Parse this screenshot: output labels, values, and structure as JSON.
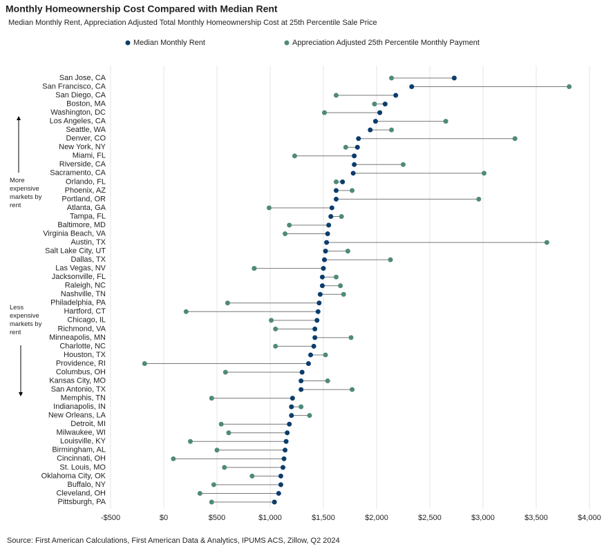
{
  "chart_data": {
    "type": "dumbbell",
    "title": "Monthly Homeownership Cost Compared with Median Rent",
    "subtitle": "Median Monthly Rent, Appreciation Adjusted Total Monthly Homeownership Cost at 25th Percentile Sale Price",
    "source": "Source: First American Calculations, First American Data & Analytics, IPUMS ACS, Zillow, Q2 2024",
    "annotations": [
      "More expensive markets by rent",
      "Less expensive markets by rent"
    ],
    "categories": [
      "San Jose, CA",
      "San Francisco, CA",
      "San Diego, CA",
      "Boston, MA",
      "Washington, DC",
      "Los Angeles, CA",
      "Seattle, WA",
      "Denver, CO",
      "New York, NY",
      "Miami, FL",
      "Riverside, CA",
      "Sacramento, CA",
      "Orlando, FL",
      "Phoenix, AZ",
      "Portland, OR",
      "Atlanta, GA",
      "Tampa, FL",
      "Baltimore, MD",
      "Virginia Beach, VA",
      "Austin, TX",
      "Salt Lake City, UT",
      "Dallas, TX",
      "Las Vegas, NV",
      "Jacksonville, FL",
      "Raleigh, NC",
      "Nashville, TN",
      "Philadelphia, PA",
      "Hartford, CT",
      "Chicago, IL",
      "Richmond, VA",
      "Minneapolis, MN",
      "Charlotte, NC",
      "Houston, TX",
      "Providence, RI",
      "Columbus, OH",
      "Kansas City, MO",
      "San Antonio, TX",
      "Memphis, TN",
      "Indianapolis, IN",
      "New Orleans, LA",
      "Detroit, MI",
      "Milwaukee, WI",
      "Louisville, KY",
      "Birmingham, AL",
      "Cincinnati, OH",
      "St. Louis, MO",
      "Oklahoma City, OK",
      "Buffalo, NY",
      "Cleveland, OH",
      "Pittsburgh, PA"
    ],
    "series": [
      {
        "name": "Median Monthly Rent",
        "color": "#0b3d6b",
        "values": [
          2730,
          2330,
          2180,
          2080,
          2030,
          1990,
          1940,
          1830,
          1820,
          1790,
          1790,
          1780,
          1680,
          1620,
          1620,
          1580,
          1570,
          1550,
          1540,
          1530,
          1520,
          1510,
          1500,
          1490,
          1490,
          1470,
          1460,
          1450,
          1440,
          1420,
          1420,
          1410,
          1380,
          1360,
          1300,
          1290,
          1290,
          1210,
          1200,
          1200,
          1180,
          1160,
          1150,
          1140,
          1130,
          1120,
          1100,
          1100,
          1080,
          1040
        ]
      },
      {
        "name": "Appreciation Adjusted 25th Percentile Monthly Payment",
        "color": "#4f8a78",
        "values": [
          2140,
          3810,
          1620,
          1980,
          1510,
          2650,
          2140,
          3300,
          1710,
          1230,
          2250,
          3010,
          1620,
          1770,
          2960,
          990,
          1670,
          1180,
          1140,
          3600,
          1730,
          2130,
          850,
          1620,
          1660,
          1690,
          600,
          210,
          1010,
          1050,
          1760,
          1050,
          1520,
          -180,
          580,
          1540,
          1770,
          450,
          1290,
          1370,
          540,
          610,
          250,
          500,
          90,
          570,
          830,
          470,
          340,
          450
        ]
      }
    ],
    "xlim": [
      -500,
      4000
    ],
    "xticks": [
      {
        "value": -500,
        "label": "-$500"
      },
      {
        "value": 0,
        "label": "$0"
      },
      {
        "value": 500,
        "label": "$500"
      },
      {
        "value": 1000,
        "label": "$1,000"
      },
      {
        "value": 1500,
        "label": "$1,500"
      },
      {
        "value": 2000,
        "label": "$2,000"
      },
      {
        "value": 2500,
        "label": "$2,500"
      },
      {
        "value": 3000,
        "label": "$3,000"
      },
      {
        "value": 3500,
        "label": "$3,500"
      },
      {
        "value": 4000,
        "label": "$4,000"
      }
    ],
    "grid": true
  }
}
